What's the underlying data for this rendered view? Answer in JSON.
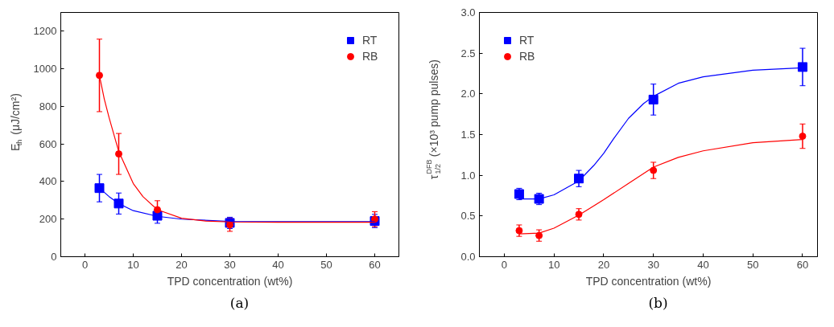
{
  "chart_data": [
    {
      "type": "scatter",
      "xlabel": "TPD concentration (wt%)",
      "ylabel": "E$_{th}$ (μJ/cm²)",
      "xlim": [
        -5,
        65
      ],
      "ylim": [
        0,
        1300
      ],
      "xticks": [
        0,
        10,
        20,
        30,
        40,
        50,
        60
      ],
      "yticks": [
        0,
        200,
        400,
        600,
        800,
        1000,
        1200
      ],
      "grid": false,
      "legend": "top right",
      "annotations": [
        "(a)"
      ],
      "series": [
        {
          "name": "RT",
          "marker": "square",
          "color": "#0000ff",
          "x": [
            3,
            7,
            15,
            30,
            60
          ],
          "values": [
            365,
            283,
            218,
            180,
            190
          ],
          "errors": [
            73,
            56,
            40,
            30,
            35
          ]
        },
        {
          "name": "RB",
          "marker": "circle",
          "color": "#ff0000",
          "x": [
            3,
            7,
            15,
            30,
            60
          ],
          "values": [
            965,
            547,
            250,
            170,
            200
          ],
          "errors": [
            193,
            109,
            48,
            35,
            40
          ]
        },
        {
          "type": "line",
          "color": "#0000ff",
          "x": [
            3,
            5,
            7,
            10,
            15,
            20,
            30,
            60
          ],
          "values": [
            365,
            320,
            283,
            245,
            215,
            200,
            188,
            187
          ]
        },
        {
          "type": "line",
          "color": "#ff0000",
          "x": [
            3,
            4,
            5,
            7,
            10,
            12,
            15,
            20,
            25,
            30,
            40,
            60
          ],
          "values": [
            965,
            840,
            740,
            560,
            390,
            320,
            250,
            205,
            190,
            185,
            183,
            183
          ]
        }
      ]
    },
    {
      "type": "scatter",
      "xlabel": "TPD concentration (wt%)",
      "ylabel": "τ$_{1/2}$$^{DFB}$ (×10³ pump pulses)",
      "xlim": [
        -5,
        63
      ],
      "ylim": [
        0,
        3
      ],
      "xticks": [
        0,
        10,
        20,
        30,
        40,
        50,
        60
      ],
      "yticks": [
        {
          "value": 0,
          "label": "0.0"
        },
        0.5,
        {
          "value": 1,
          "label": "1.0"
        },
        1.5,
        {
          "value": 2,
          "label": "2.0"
        },
        2.5,
        {
          "value": 3,
          "label": "3.0"
        }
      ],
      "grid": false,
      "legend": "top left",
      "annotations": [
        "(b)"
      ],
      "series": [
        {
          "name": "RT",
          "marker": "square",
          "color": "#0000ff",
          "x": [
            3,
            7,
            15,
            30,
            60
          ],
          "values": [
            0.77,
            0.71,
            0.96,
            1.93,
            2.33
          ],
          "errors": [
            0.07,
            0.07,
            0.1,
            0.19,
            0.23
          ]
        },
        {
          "name": "RB",
          "marker": "circle",
          "color": "#ff0000",
          "x": [
            3,
            7,
            15,
            30,
            60
          ],
          "values": [
            0.32,
            0.26,
            0.52,
            1.06,
            1.48
          ],
          "errors": [
            0.07,
            0.07,
            0.07,
            0.1,
            0.15
          ]
        },
        {
          "type": "line",
          "color": "#0000ff",
          "x": [
            3,
            7,
            10,
            15,
            18,
            20,
            22,
            25,
            28,
            30,
            35,
            40,
            50,
            60
          ],
          "values": [
            0.71,
            0.71,
            0.76,
            0.93,
            1.12,
            1.27,
            1.45,
            1.7,
            1.88,
            1.97,
            2.13,
            2.21,
            2.29,
            2.32
          ]
        },
        {
          "type": "line",
          "color": "#ff0000",
          "x": [
            3,
            7,
            10,
            15,
            20,
            25,
            30,
            35,
            40,
            50,
            60
          ],
          "values": [
            0.28,
            0.29,
            0.35,
            0.51,
            0.7,
            0.9,
            1.1,
            1.22,
            1.3,
            1.4,
            1.44
          ]
        }
      ]
    }
  ]
}
